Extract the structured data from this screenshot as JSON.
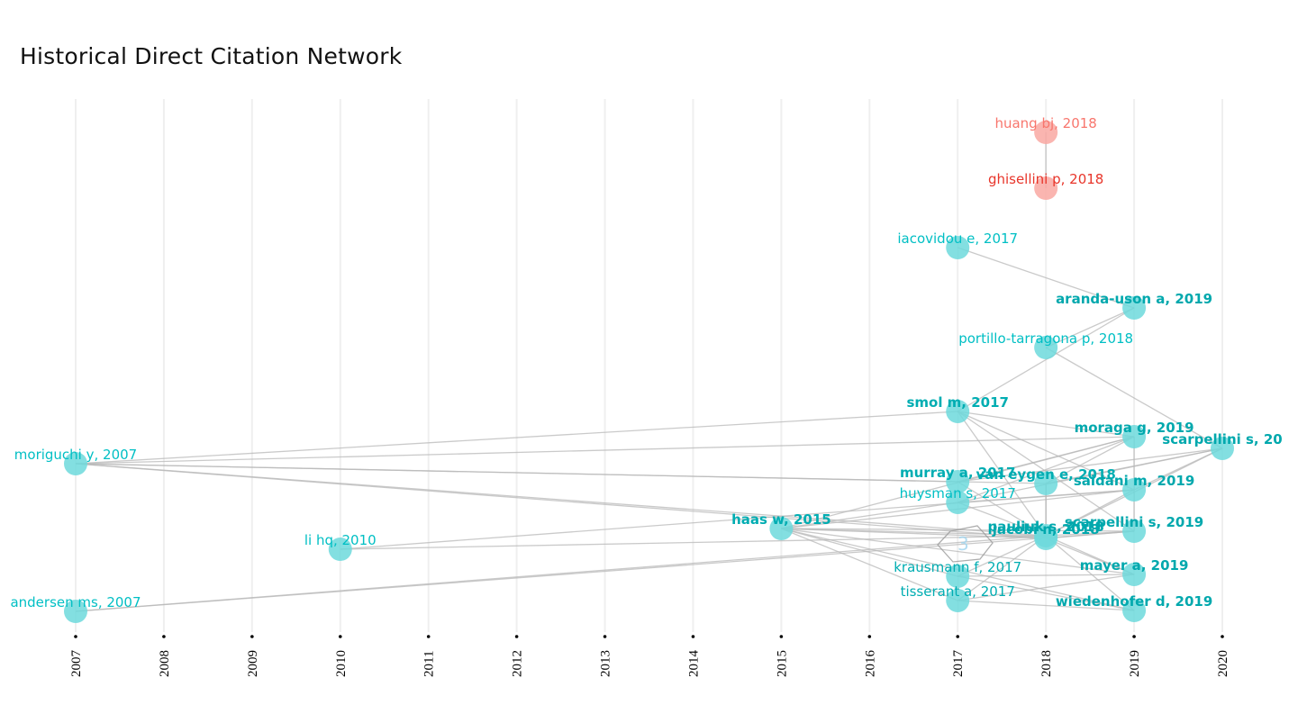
{
  "title": "Historical Direct Citation Network",
  "watermark": {
    "text": "3"
  },
  "chart_data": {
    "type": "network",
    "title": "Historical Direct Citation Network",
    "xlabel": "",
    "ylabel": "",
    "x_ticks": [
      "2007",
      "2008",
      "2009",
      "2010",
      "2011",
      "2012",
      "2013",
      "2014",
      "2015",
      "2016",
      "2017",
      "2018",
      "2019",
      "2020"
    ],
    "x_range": [
      2007,
      2020
    ],
    "grid": true,
    "clusters": [
      {
        "id": 1,
        "color": "#f8766d",
        "node_fill": "#f9a8a2"
      },
      {
        "id": 2,
        "color": "#00bfc4",
        "node_fill": "#6dd9dc"
      }
    ],
    "nodes": [
      {
        "id": "huang",
        "label": "huang bj, 2018",
        "year": 2018,
        "rank": 1,
        "cluster": 1,
        "label_color": "#f8766d",
        "bold": false
      },
      {
        "id": "ghisellini",
        "label": "ghisellini p, 2018",
        "year": 2018,
        "rank": 2,
        "cluster": 1,
        "label_color": "#e8352a",
        "bold": false
      },
      {
        "id": "iacovidou",
        "label": "iacovidou e, 2017",
        "year": 2017,
        "rank": 3,
        "cluster": 2,
        "label_color": "#00bfc4",
        "bold": false
      },
      {
        "id": "aranda",
        "label": "aranda-uson a, 2019",
        "year": 2019,
        "rank": 4,
        "cluster": 2,
        "label_color": "#00a8ad",
        "bold": true
      },
      {
        "id": "portillo",
        "label": "portillo-tarragona p, 2018",
        "year": 2018,
        "rank": 5,
        "cluster": 2,
        "label_color": "#00bfc4",
        "bold": false
      },
      {
        "id": "smol",
        "label": "smol m, 2017",
        "year": 2017,
        "rank": 6,
        "cluster": 2,
        "label_color": "#00adb2",
        "bold": true
      },
      {
        "id": "moraga",
        "label": "moraga g, 2019",
        "year": 2019,
        "rank": 7,
        "cluster": 2,
        "label_color": "#00a8ad",
        "bold": true
      },
      {
        "id": "scarp20",
        "label": "scarpellini s, 20",
        "year": 2020,
        "rank": 8,
        "cluster": 2,
        "label_color": "#00a8ad",
        "bold": true
      },
      {
        "id": "moriguchi",
        "label": "moriguchi y, 2007",
        "year": 2007,
        "rank": 9,
        "cluster": 2,
        "label_color": "#00bfc4",
        "bold": false
      },
      {
        "id": "murray",
        "label": "murray a, 2017",
        "year": 2017,
        "rank": 10,
        "cluster": 2,
        "label_color": "#00adb2",
        "bold": true
      },
      {
        "id": "vaneygen",
        "label": "van eygen e, 2018",
        "year": 2018,
        "rank": 11,
        "cluster": 2,
        "label_color": "#00adb2",
        "bold": true
      },
      {
        "id": "saidani",
        "label": "saidani m, 2019",
        "year": 2019,
        "rank": 12,
        "cluster": 2,
        "label_color": "#00a8ad",
        "bold": true
      },
      {
        "id": "huysman",
        "label": "huysman s, 2017",
        "year": 2017,
        "rank": 13,
        "cluster": 2,
        "label_color": "#00bfc4",
        "bold": false
      },
      {
        "id": "haas",
        "label": "haas w, 2015",
        "year": 2015,
        "rank": 14,
        "cluster": 2,
        "label_color": "#00adb2",
        "bold": true
      },
      {
        "id": "scarp19",
        "label": "scarpellini s, 2019",
        "year": 2019,
        "rank": 15,
        "cluster": 2,
        "label_color": "#00a8ad",
        "bold": true
      },
      {
        "id": "pauliuk",
        "label": "pauliuk s, 2018",
        "year": 2018,
        "rank": 16,
        "cluster": 2,
        "label_color": "#00a8ad",
        "bold": true
      },
      {
        "id": "jacobi",
        "label": "jacobi n, 2018",
        "year": 2018,
        "rank": 17,
        "cluster": 2,
        "label_color": "#00a8ad",
        "bold": true
      },
      {
        "id": "lihq",
        "label": "li hq, 2010",
        "year": 2010,
        "rank": 18,
        "cluster": 2,
        "label_color": "#00bfc4",
        "bold": false
      },
      {
        "id": "mayer",
        "label": "mayer a, 2019",
        "year": 2019,
        "rank": 19,
        "cluster": 2,
        "label_color": "#00a8ad",
        "bold": true
      },
      {
        "id": "krausmann",
        "label": "krausmann f, 2017",
        "year": 2017,
        "rank": 20,
        "cluster": 2,
        "label_color": "#00adb2",
        "bold": false
      },
      {
        "id": "tisserant",
        "label": "tisserant a, 2017",
        "year": 2017,
        "rank": 21,
        "cluster": 2,
        "label_color": "#00adb2",
        "bold": false
      },
      {
        "id": "wiedenhofer",
        "label": "wiedenhofer d, 2019",
        "year": 2019,
        "rank": 22,
        "cluster": 2,
        "label_color": "#00a8ad",
        "bold": true
      },
      {
        "id": "andersen",
        "label": "andersen ms, 2007",
        "year": 2007,
        "rank": 23,
        "cluster": 2,
        "label_color": "#00bfc4",
        "bold": false
      }
    ],
    "edges": [
      [
        "huang",
        "ghisellini"
      ],
      [
        "iacovidou",
        "aranda"
      ],
      [
        "portillo",
        "aranda"
      ],
      [
        "smol",
        "aranda"
      ],
      [
        "portillo",
        "scarp20"
      ],
      [
        "smol",
        "moraga"
      ],
      [
        "smol",
        "saidani"
      ],
      [
        "smol",
        "pauliuk"
      ],
      [
        "smol",
        "scarp19"
      ],
      [
        "moriguchi",
        "smol"
      ],
      [
        "moriguchi",
        "moraga"
      ],
      [
        "moriguchi",
        "vaneygen"
      ],
      [
        "moriguchi",
        "pauliuk"
      ],
      [
        "moriguchi",
        "jacobi"
      ],
      [
        "moriguchi",
        "murray"
      ],
      [
        "murray",
        "moraga"
      ],
      [
        "murray",
        "scarp20"
      ],
      [
        "murray",
        "pauliuk"
      ],
      [
        "vaneygen",
        "moraga"
      ],
      [
        "vaneygen",
        "pauliuk"
      ],
      [
        "vaneygen",
        "scarp20"
      ],
      [
        "huysman",
        "saidani"
      ],
      [
        "huysman",
        "scarp20"
      ],
      [
        "huysman",
        "pauliuk"
      ],
      [
        "huysman",
        "moraga"
      ],
      [
        "haas",
        "huysman"
      ],
      [
        "haas",
        "moraga"
      ],
      [
        "haas",
        "saidani"
      ],
      [
        "haas",
        "pauliuk"
      ],
      [
        "haas",
        "jacobi"
      ],
      [
        "haas",
        "scarp19"
      ],
      [
        "haas",
        "mayer"
      ],
      [
        "haas",
        "wiedenhofer"
      ],
      [
        "haas",
        "krausmann"
      ],
      [
        "haas",
        "tisserant"
      ],
      [
        "lihq",
        "pauliuk"
      ],
      [
        "lihq",
        "saidani"
      ],
      [
        "andersen",
        "pauliuk"
      ],
      [
        "andersen",
        "scarp19"
      ],
      [
        "krausmann",
        "mayer"
      ],
      [
        "krausmann",
        "wiedenhofer"
      ],
      [
        "krausmann",
        "pauliuk"
      ],
      [
        "tisserant",
        "mayer"
      ],
      [
        "tisserant",
        "wiedenhofer"
      ],
      [
        "tisserant",
        "pauliuk"
      ],
      [
        "pauliuk",
        "mayer"
      ],
      [
        "pauliuk",
        "wiedenhofer"
      ],
      [
        "pauliuk",
        "scarp19"
      ],
      [
        "pauliuk",
        "saidani"
      ],
      [
        "pauliuk",
        "scarp20"
      ],
      [
        "jacobi",
        "scarp19"
      ],
      [
        "jacobi",
        "mayer"
      ],
      [
        "moraga",
        "scarp19"
      ],
      [
        "saidani",
        "scarp20"
      ],
      [
        "vaneygen",
        "jacobi"
      ]
    ]
  }
}
